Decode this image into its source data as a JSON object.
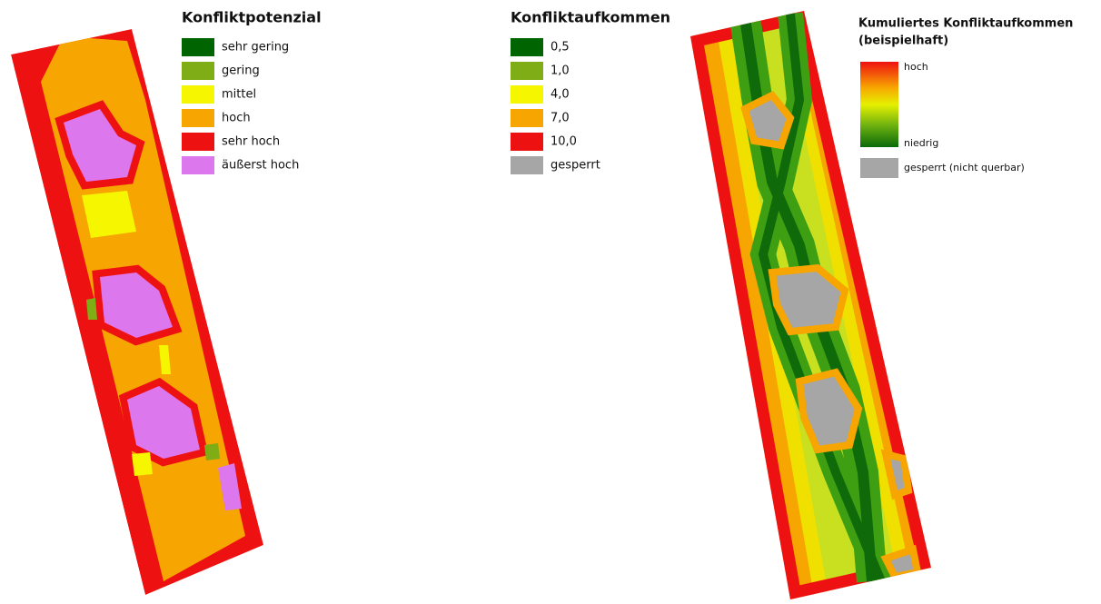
{
  "panels": [
    {
      "title": "Konfliktpotenzial",
      "legend": [
        {
          "label": "sehr gering",
          "color": "#006400"
        },
        {
          "label": "gering",
          "color": "#7fad16"
        },
        {
          "label": "mittel",
          "color": "#f6f600"
        },
        {
          "label": "hoch",
          "color": "#f7a500"
        },
        {
          "label": "sehr hoch",
          "color": "#ee1111"
        },
        {
          "label": "äußerst hoch",
          "color": "#dd77ee"
        }
      ]
    },
    {
      "title": "Konfliktaufkommen",
      "legend": [
        {
          "label": "0,5",
          "color": "#006400"
        },
        {
          "label": "1,0",
          "color": "#7fad16"
        },
        {
          "label": "4,0",
          "color": "#f6f600"
        },
        {
          "label": "7,0",
          "color": "#f7a500"
        },
        {
          "label": "10,0",
          "color": "#ee1111"
        },
        {
          "label": "gesperrt",
          "color": "#a6a6a6"
        }
      ]
    },
    {
      "title_lines": [
        "Kumuliertes Konfliktaufkommen",
        "(beispielhaft)"
      ],
      "scale_high": "hoch",
      "scale_low": "niedrig",
      "blocked": {
        "label": "gesperrt (nicht querbar)",
        "color": "#a6a6a6"
      }
    }
  ]
}
